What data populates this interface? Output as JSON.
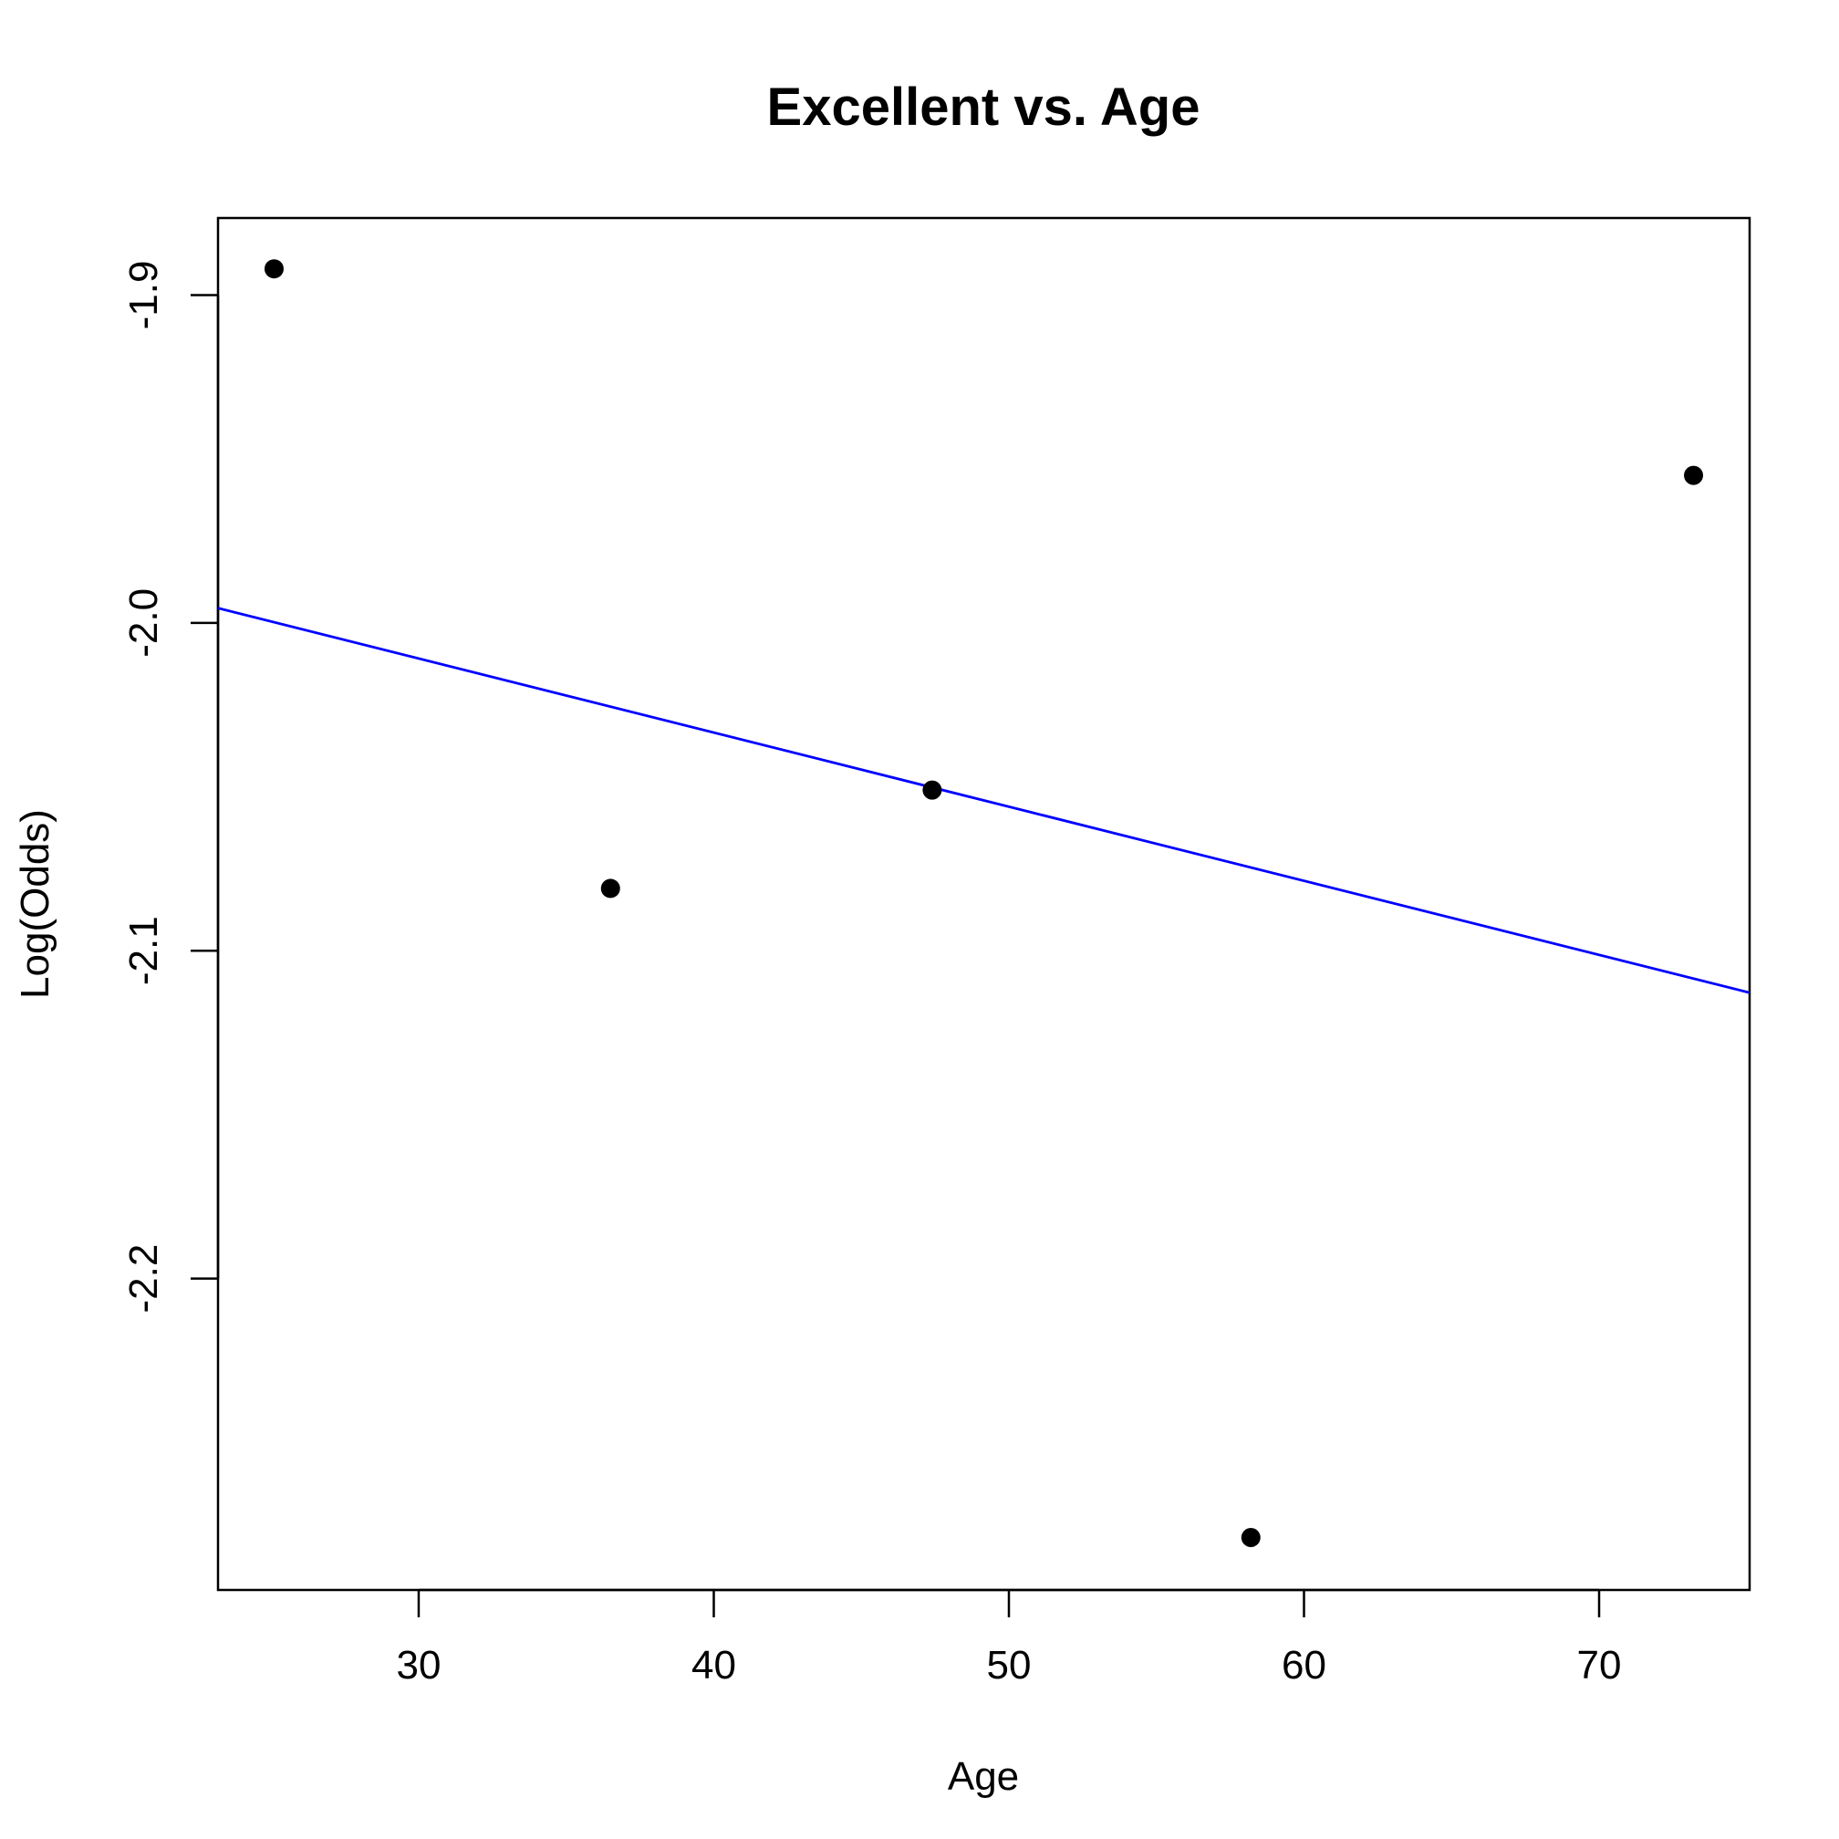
{
  "chart_data": {
    "type": "scatter",
    "title": "Excellent vs. Age",
    "xlabel": "Age",
    "ylabel": "Log(Odds)",
    "xlim": [
      23.2,
      75.1
    ],
    "ylim": [
      -2.295,
      -1.8765
    ],
    "x_ticks": [
      30,
      40,
      50,
      60,
      70
    ],
    "x_tick_labels": [
      "30",
      "40",
      "50",
      "60",
      "70"
    ],
    "y_ticks": [
      -1.9,
      -2.0,
      -2.1,
      -2.2
    ],
    "y_tick_labels": [
      "-1.9",
      "-2.0",
      "-2.1",
      "-2.2"
    ],
    "points": [
      {
        "x": 25.1,
        "y": -1.892
      },
      {
        "x": 36.5,
        "y": -2.081
      },
      {
        "x": 47.4,
        "y": -2.051
      },
      {
        "x": 58.2,
        "y": -2.279
      },
      {
        "x": 73.2,
        "y": -1.955
      }
    ],
    "fit_line": {
      "x": [
        23.2,
        75.1
      ],
      "y": [
        -1.9955,
        -2.1128
      ],
      "color": "#0000ff"
    },
    "point_color": "#000000",
    "grid": false,
    "legend": "none"
  }
}
